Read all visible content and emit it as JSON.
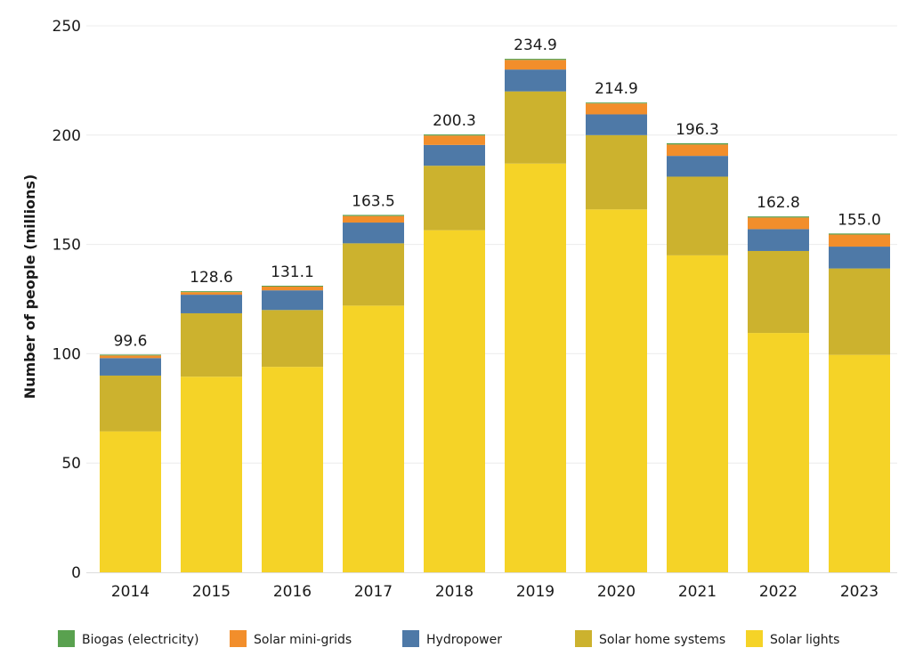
{
  "chart_data": {
    "type": "bar",
    "stacked": true,
    "ylabel": "Number of people (millions)",
    "xlabel": "",
    "ylim": [
      0,
      250
    ],
    "yticks": [
      0,
      50,
      100,
      150,
      200,
      250
    ],
    "grid": true,
    "legend_position": "bottom",
    "categories": [
      "2014",
      "2015",
      "2016",
      "2017",
      "2018",
      "2019",
      "2020",
      "2021",
      "2022",
      "2023"
    ],
    "totals": [
      "99.6",
      "128.6",
      "131.1",
      "163.5",
      "200.3",
      "234.9",
      "214.9",
      "196.3",
      "162.8",
      "155.0"
    ],
    "series": [
      {
        "name": "Solar lights",
        "color": "#f5d327",
        "values": [
          64.5,
          89.5,
          94.0,
          122.0,
          156.5,
          187.0,
          166.0,
          145.0,
          109.5,
          99.5
        ]
      },
      {
        "name": "Solar home systems",
        "color": "#ccb22e",
        "values": [
          25.5,
          29.0,
          26.0,
          28.5,
          29.5,
          33.0,
          34.0,
          36.0,
          37.5,
          39.5
        ]
      },
      {
        "name": "Hydropower",
        "color": "#4e79a7",
        "values": [
          8.0,
          8.5,
          9.0,
          9.5,
          9.5,
          10.0,
          9.5,
          9.5,
          10.0,
          10.0
        ]
      },
      {
        "name": "Solar mini-grids",
        "color": "#f28e2b",
        "values": [
          1.2,
          1.2,
          1.7,
          3.0,
          4.3,
          4.4,
          5.0,
          5.2,
          5.3,
          5.5
        ]
      },
      {
        "name": "Biogas (electricity)",
        "color": "#59a14f",
        "values": [
          0.4,
          0.4,
          0.4,
          0.5,
          0.5,
          0.5,
          0.4,
          0.6,
          0.5,
          0.5
        ]
      }
    ],
    "legend_order": [
      "Biogas (electricity)",
      "Solar mini-grids",
      "Hydropower",
      "Solar home systems",
      "Solar lights"
    ]
  }
}
